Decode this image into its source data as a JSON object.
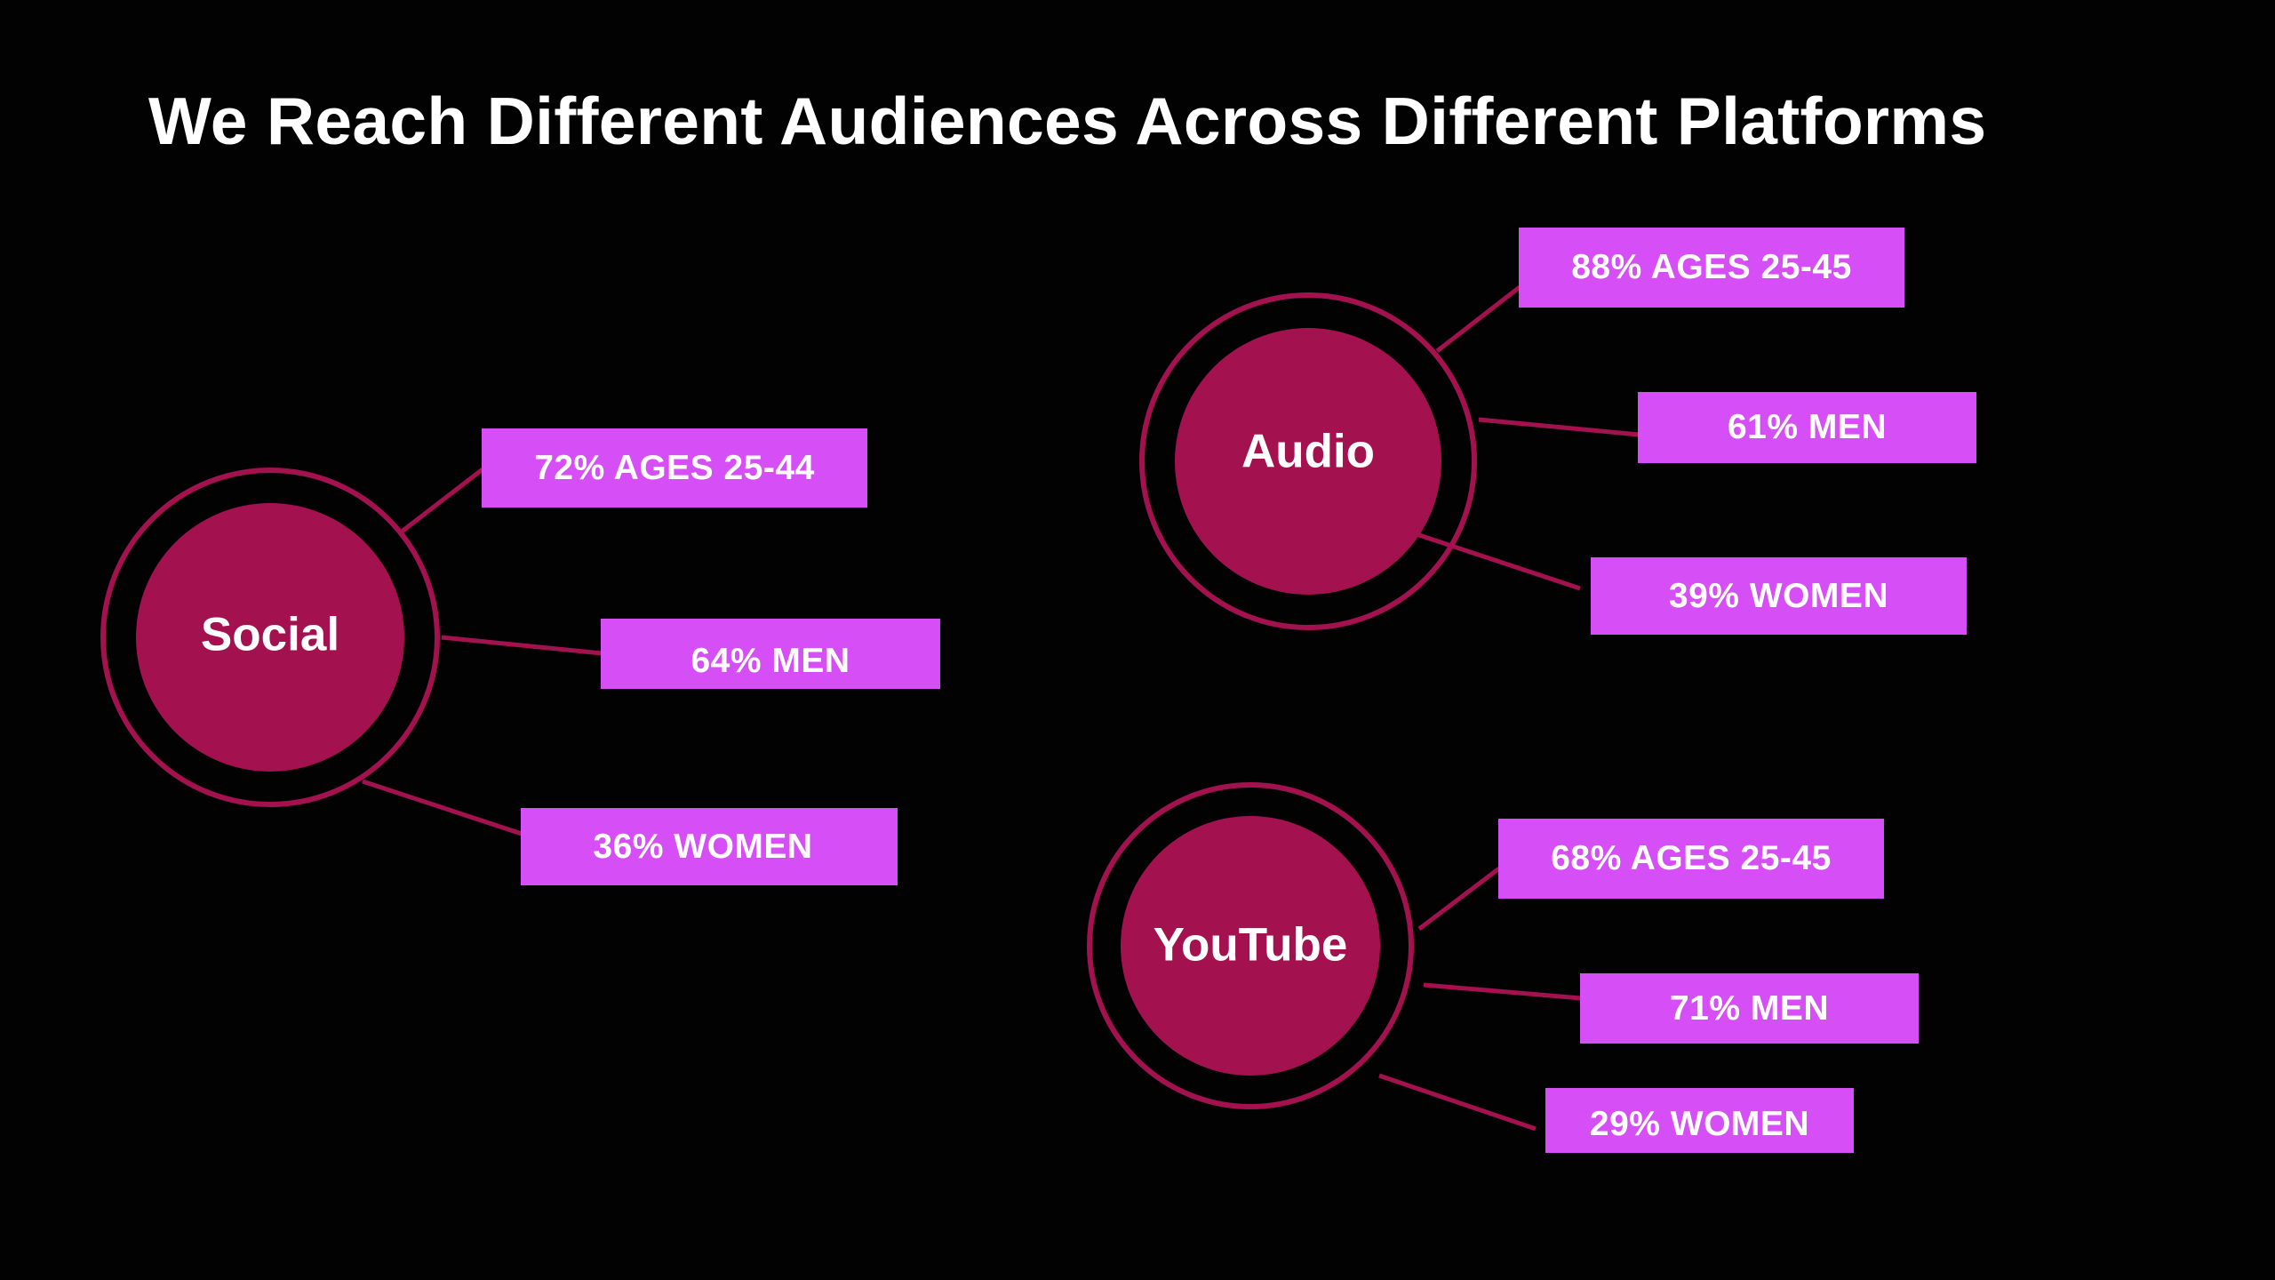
{
  "title": "We Reach Different Audiences Across Different Platforms",
  "colors": {
    "background": "#030203",
    "circle": "#a4114f",
    "label_box": "#d64ef5",
    "text": "#ffffff"
  },
  "platforms": [
    {
      "name": "Social",
      "stats": [
        "72% AGES 25-44",
        "64% MEN",
        "36% WOMEN"
      ]
    },
    {
      "name": "Audio",
      "stats": [
        "88% AGES 25-45",
        "61% MEN",
        "39% WOMEN"
      ]
    },
    {
      "name": "YouTube",
      "stats": [
        "68% AGES 25-45",
        "71% MEN",
        "29% WOMEN"
      ]
    }
  ]
}
